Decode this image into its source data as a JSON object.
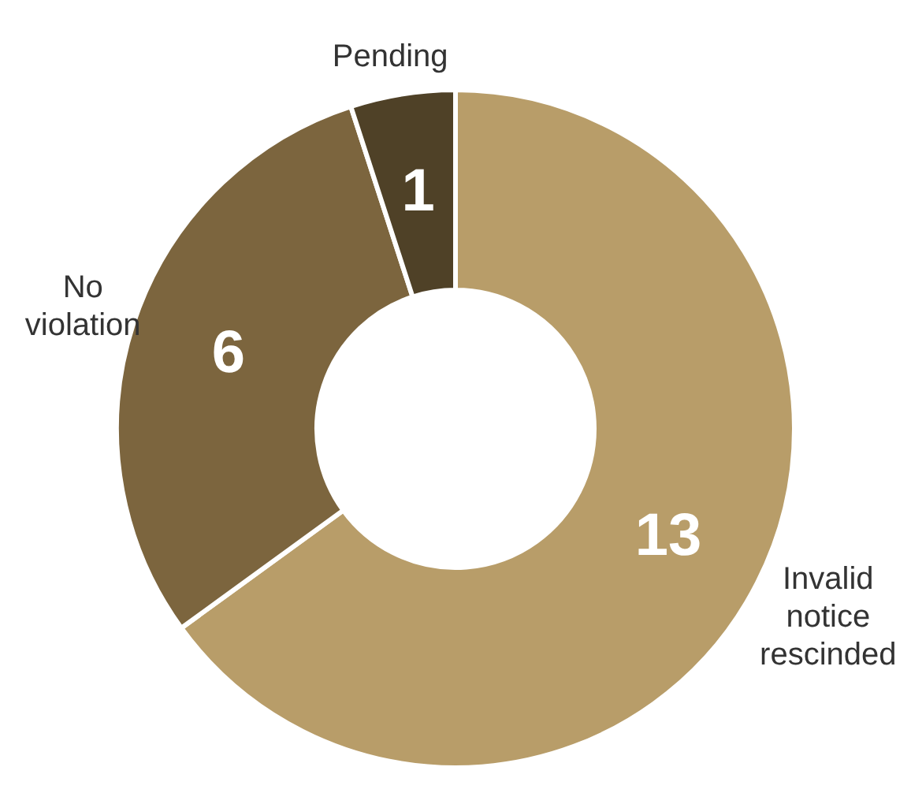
{
  "chart_data": {
    "type": "donut",
    "categories": [
      "Invalid notice rescinded",
      "No violation",
      "Pending"
    ],
    "values": [
      13,
      6,
      1
    ],
    "colors": [
      "#b89d69",
      "#7c653e",
      "#4f4127"
    ],
    "data_labels": true,
    "legend": false
  }
}
